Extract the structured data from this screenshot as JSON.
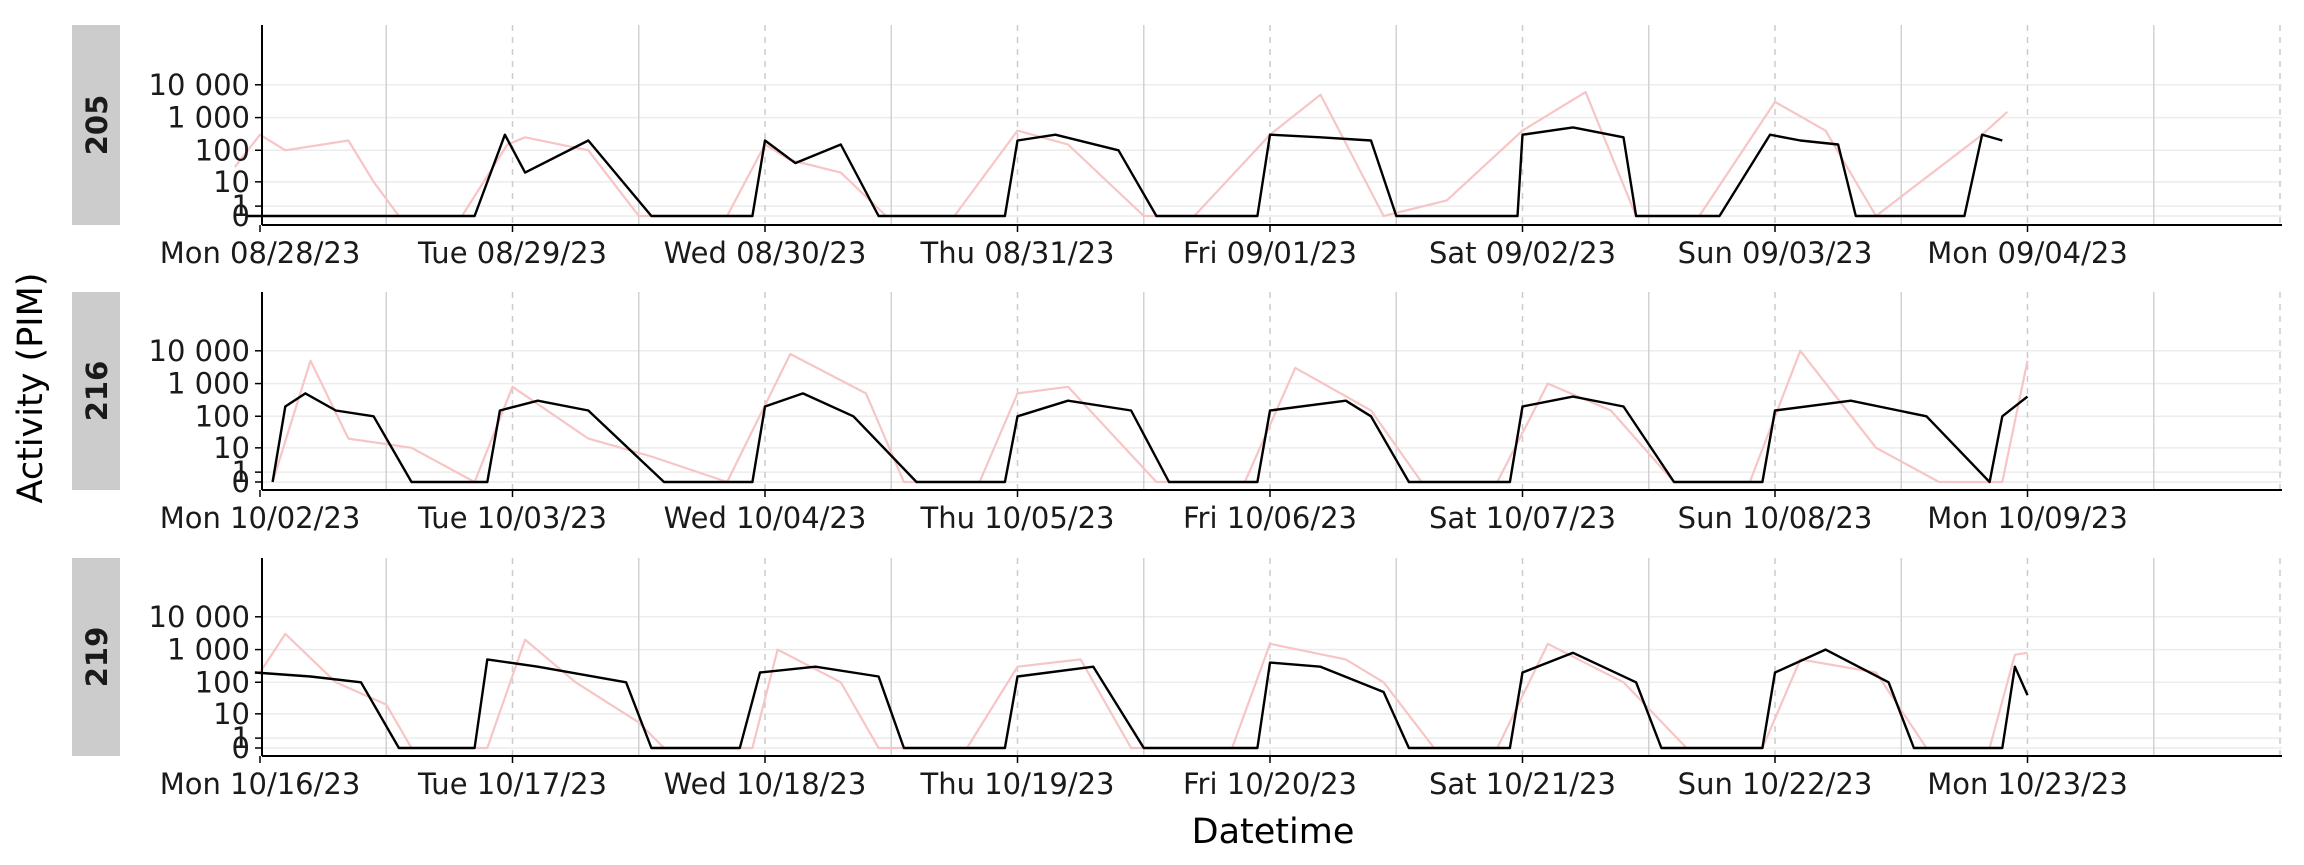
{
  "chart_data": {
    "type": "line",
    "xlabel": "Datetime",
    "ylabel": "Activity (PIM)",
    "y_scale": "pseudo-log",
    "y_ticks": [
      0,
      1,
      10,
      100,
      1000,
      10000
    ],
    "y_tick_labels": [
      "0",
      "1",
      "10",
      "100",
      "1 000",
      "10 000"
    ],
    "grid": "light horizontal gridlines; dashed vertical line at noon, solid vertical line at midnight",
    "series_colors": {
      "primary": "#000000",
      "secondary": "#f7c5c5"
    },
    "panels": [
      {
        "id": "205",
        "strip_label": "205",
        "day_labels": [
          "Mon 08/28/23",
          "Tue 08/29/23",
          "Wed 08/30/23",
          "Thu 08/31/23",
          "Fri 09/01/23",
          "Sat 09/02/23",
          "Sun 09/03/23",
          "Mon 09/04/23"
        ],
        "series": [
          {
            "role": "primary",
            "points": [
              [
                -0.05,
                0
              ],
              [
                0.85,
                0
              ],
              [
                0.97,
                300
              ],
              [
                1.05,
                20
              ],
              [
                1.3,
                200
              ],
              [
                1.55,
                0
              ],
              [
                1.95,
                0
              ],
              [
                2.0,
                200
              ],
              [
                2.12,
                40
              ],
              [
                2.3,
                150
              ],
              [
                2.45,
                0
              ],
              [
                2.95,
                0
              ],
              [
                3.0,
                200
              ],
              [
                3.15,
                300
              ],
              [
                3.4,
                100
              ],
              [
                3.55,
                0
              ],
              [
                3.95,
                0
              ],
              [
                4.0,
                300
              ],
              [
                4.2,
                250
              ],
              [
                4.4,
                200
              ],
              [
                4.5,
                0
              ],
              [
                4.98,
                0
              ],
              [
                5.0,
                300
              ],
              [
                5.2,
                500
              ],
              [
                5.4,
                250
              ],
              [
                5.45,
                0
              ],
              [
                5.78,
                0
              ],
              [
                5.98,
                300
              ],
              [
                6.1,
                200
              ],
              [
                6.25,
                150
              ],
              [
                6.32,
                0
              ],
              [
                6.75,
                0
              ],
              [
                6.82,
                300
              ],
              [
                6.9,
                200
              ]
            ]
          },
          {
            "role": "secondary",
            "points": [
              [
                -0.1,
                30
              ],
              [
                0.0,
                300
              ],
              [
                0.1,
                100
              ],
              [
                0.35,
                200
              ],
              [
                0.45,
                10
              ],
              [
                0.55,
                0
              ],
              [
                0.8,
                0
              ],
              [
                0.98,
                150
              ],
              [
                1.05,
                250
              ],
              [
                1.3,
                100
              ],
              [
                1.5,
                0
              ],
              [
                1.85,
                0
              ],
              [
                2.0,
                150
              ],
              [
                2.1,
                50
              ],
              [
                2.3,
                20
              ],
              [
                2.48,
                0
              ],
              [
                2.75,
                0
              ],
              [
                3.0,
                400
              ],
              [
                3.2,
                150
              ],
              [
                3.5,
                0
              ],
              [
                3.7,
                0
              ],
              [
                4.0,
                300
              ],
              [
                4.2,
                5000
              ],
              [
                4.45,
                0
              ],
              [
                4.7,
                2
              ],
              [
                5.0,
                400
              ],
              [
                5.25,
                6000
              ],
              [
                5.45,
                0
              ],
              [
                5.7,
                0
              ],
              [
                6.0,
                3000
              ],
              [
                6.2,
                400
              ],
              [
                6.4,
                0
              ],
              [
                6.82,
                300
              ],
              [
                6.92,
                1500
              ]
            ]
          }
        ]
      },
      {
        "id": "216",
        "strip_label": "216",
        "day_labels": [
          "Mon 10/02/23",
          "Tue 10/03/23",
          "Wed 10/04/23",
          "Thu 10/05/23",
          "Fri 10/06/23",
          "Sat 10/07/23",
          "Sun 10/08/23",
          "Mon 10/09/23"
        ],
        "series": [
          {
            "role": "primary",
            "points": [
              [
                0.05,
                0
              ],
              [
                0.1,
                200
              ],
              [
                0.18,
                500
              ],
              [
                0.3,
                150
              ],
              [
                0.45,
                100
              ],
              [
                0.6,
                0
              ],
              [
                0.9,
                0
              ],
              [
                0.95,
                150
              ],
              [
                1.1,
                300
              ],
              [
                1.3,
                150
              ],
              [
                1.6,
                0
              ],
              [
                1.95,
                0
              ],
              [
                2.0,
                200
              ],
              [
                2.15,
                500
              ],
              [
                2.35,
                100
              ],
              [
                2.6,
                0
              ],
              [
                2.95,
                0
              ],
              [
                3.0,
                100
              ],
              [
                3.2,
                300
              ],
              [
                3.45,
                150
              ],
              [
                3.6,
                0
              ],
              [
                3.95,
                0
              ],
              [
                4.0,
                150
              ],
              [
                4.3,
                300
              ],
              [
                4.4,
                100
              ],
              [
                4.55,
                0
              ],
              [
                4.95,
                0
              ],
              [
                5.0,
                200
              ],
              [
                5.2,
                400
              ],
              [
                5.4,
                200
              ],
              [
                5.6,
                0
              ],
              [
                5.95,
                0
              ],
              [
                6.0,
                150
              ],
              [
                6.3,
                300
              ],
              [
                6.6,
                100
              ],
              [
                6.85,
                0
              ],
              [
                6.9,
                100
              ],
              [
                7.0,
                400
              ]
            ]
          },
          {
            "role": "secondary",
            "points": [
              [
                0.05,
                0
              ],
              [
                0.2,
                5000
              ],
              [
                0.35,
                20
              ],
              [
                0.6,
                10
              ],
              [
                0.85,
                0
              ],
              [
                1.0,
                800
              ],
              [
                1.3,
                20
              ],
              [
                1.55,
                5
              ],
              [
                1.85,
                0
              ],
              [
                2.1,
                8000
              ],
              [
                2.4,
                500
              ],
              [
                2.55,
                0
              ],
              [
                2.85,
                0
              ],
              [
                3.0,
                500
              ],
              [
                3.2,
                800
              ],
              [
                3.55,
                0
              ],
              [
                3.9,
                0
              ],
              [
                4.1,
                3000
              ],
              [
                4.4,
                150
              ],
              [
                4.6,
                0
              ],
              [
                4.9,
                0
              ],
              [
                5.1,
                1000
              ],
              [
                5.35,
                150
              ],
              [
                5.6,
                0
              ],
              [
                5.9,
                0
              ],
              [
                6.1,
                10000
              ],
              [
                6.4,
                10
              ],
              [
                6.65,
                0
              ],
              [
                6.9,
                0
              ],
              [
                7.0,
                5000
              ]
            ]
          }
        ]
      },
      {
        "id": "219",
        "strip_label": "219",
        "day_labels": [
          "Mon 10/16/23",
          "Tue 10/17/23",
          "Wed 10/18/23",
          "Thu 10/19/23",
          "Fri 10/20/23",
          "Sat 10/21/23",
          "Sun 10/22/23",
          "Mon 10/23/23"
        ],
        "series": [
          {
            "role": "primary",
            "points": [
              [
                -0.02,
                200
              ],
              [
                0.2,
                150
              ],
              [
                0.4,
                100
              ],
              [
                0.55,
                0
              ],
              [
                0.85,
                0
              ],
              [
                0.9,
                500
              ],
              [
                1.1,
                300
              ],
              [
                1.45,
                100
              ],
              [
                1.55,
                0
              ],
              [
                1.9,
                0
              ],
              [
                1.98,
                200
              ],
              [
                2.2,
                300
              ],
              [
                2.45,
                150
              ],
              [
                2.55,
                0
              ],
              [
                2.95,
                0
              ],
              [
                3.0,
                150
              ],
              [
                3.3,
                300
              ],
              [
                3.5,
                0
              ],
              [
                3.95,
                0
              ],
              [
                4.0,
                400
              ],
              [
                4.2,
                300
              ],
              [
                4.45,
                50
              ],
              [
                4.55,
                0
              ],
              [
                4.95,
                0
              ],
              [
                5.0,
                200
              ],
              [
                5.2,
                800
              ],
              [
                5.45,
                100
              ],
              [
                5.55,
                0
              ],
              [
                5.95,
                0
              ],
              [
                6.0,
                200
              ],
              [
                6.2,
                1000
              ],
              [
                6.45,
                100
              ],
              [
                6.55,
                0
              ],
              [
                6.9,
                0
              ],
              [
                6.95,
                300
              ],
              [
                7.0,
                40
              ]
            ]
          },
          {
            "role": "secondary",
            "points": [
              [
                0.0,
                200
              ],
              [
                0.1,
                3000
              ],
              [
                0.3,
                100
              ],
              [
                0.5,
                20
              ],
              [
                0.6,
                0
              ],
              [
                0.9,
                0
              ],
              [
                1.05,
                2000
              ],
              [
                1.25,
                100
              ],
              [
                1.5,
                5
              ],
              [
                1.6,
                0
              ],
              [
                1.95,
                0
              ],
              [
                2.05,
                1000
              ],
              [
                2.3,
                100
              ],
              [
                2.45,
                0
              ],
              [
                2.8,
                0
              ],
              [
                3.0,
                300
              ],
              [
                3.25,
                500
              ],
              [
                3.45,
                0
              ],
              [
                3.85,
                0
              ],
              [
                4.0,
                1500
              ],
              [
                4.3,
                500
              ],
              [
                4.45,
                100
              ],
              [
                4.65,
                0
              ],
              [
                4.9,
                0
              ],
              [
                5.1,
                1500
              ],
              [
                5.4,
                100
              ],
              [
                5.65,
                0
              ],
              [
                5.95,
                0
              ],
              [
                6.1,
                500
              ],
              [
                6.4,
                200
              ],
              [
                6.6,
                0
              ],
              [
                6.85,
                0
              ],
              [
                6.95,
                700
              ],
              [
                7.0,
                800
              ]
            ]
          }
        ]
      }
    ]
  }
}
